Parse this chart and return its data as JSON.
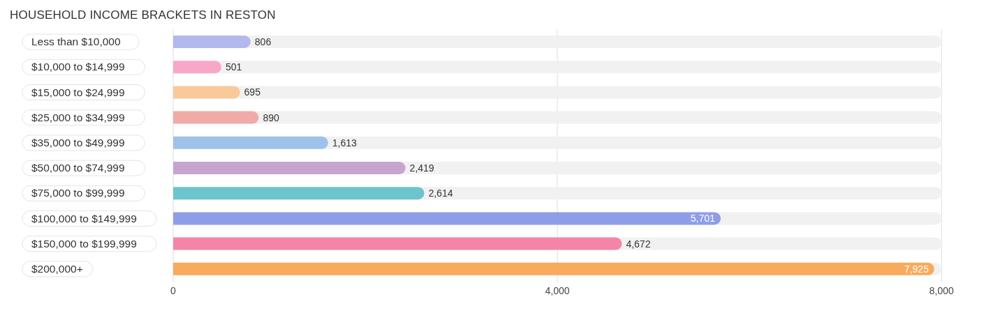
{
  "chart_data": {
    "type": "bar",
    "orientation": "horizontal",
    "title": "HOUSEHOLD INCOME BRACKETS IN RESTON",
    "categories": [
      "Less than $10,000",
      "$10,000 to $14,999",
      "$15,000 to $24,999",
      "$25,000 to $34,999",
      "$35,000 to $49,999",
      "$50,000 to $74,999",
      "$75,000 to $99,999",
      "$100,000 to $149,999",
      "$150,000 to $199,999",
      "$200,000+"
    ],
    "values": [
      806,
      501,
      695,
      890,
      1613,
      2419,
      2614,
      5701,
      4672,
      7925
    ],
    "value_labels": [
      "806",
      "501",
      "695",
      "890",
      "1,613",
      "2,419",
      "2,614",
      "5,701",
      "4,672",
      "7,925"
    ],
    "colors": [
      "#b3b9ee",
      "#f7a8c8",
      "#f9c99a",
      "#f0aaa8",
      "#9fc2ea",
      "#c7a5cf",
      "#6cc5cc",
      "#8e9ee6",
      "#f585a8",
      "#f9aa5c"
    ],
    "xlim": [
      0,
      8000
    ],
    "xticks": [
      0,
      {
        "value": 4000,
        "label": "4,000"
      },
      {
        "value": 8000,
        "label": "8,000"
      }
    ],
    "grid": "x",
    "legend": false
  }
}
